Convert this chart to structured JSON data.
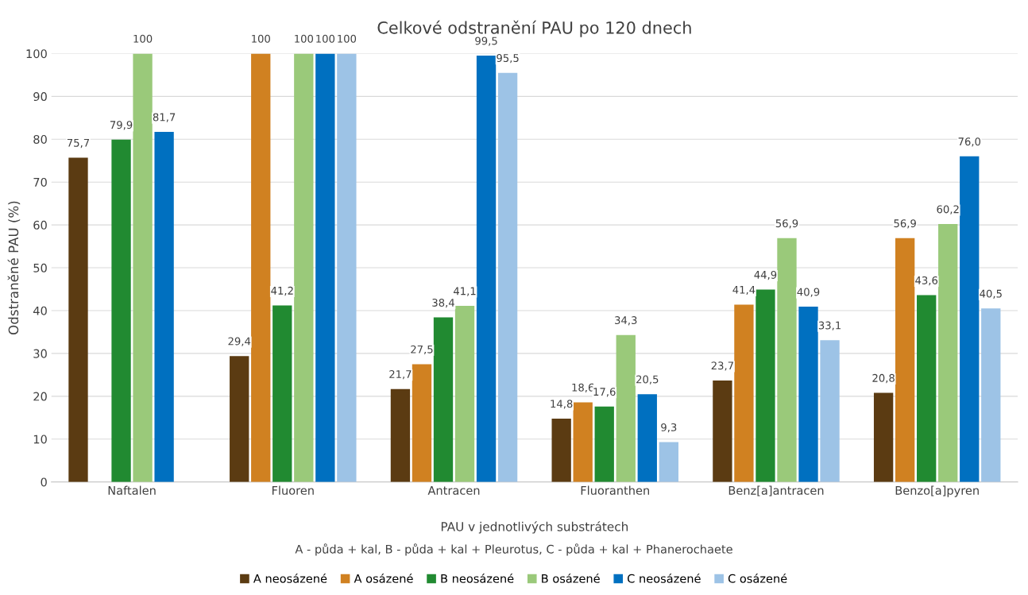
{
  "chart_data": {
    "type": "bar",
    "title": "Celkové odstranění PAU po 120 dnech",
    "xlabel": "PAU v jednotlivých substrátech",
    "ylabel": "Odstraněné PAU (%)",
    "annotations": [
      "A - půda + kal, B - půda + kal + Pleurotus, C - půda + kal + Phanerochaete"
    ],
    "categories": [
      "Naftalen",
      "Fluoren",
      "Antracen",
      "Fluoranthen",
      "Benz[a]antracen",
      "Benzo[a]pyren"
    ],
    "series": [
      {
        "name": "A neosázené",
        "color": "#5b3b12",
        "values": [
          75.7,
          29.4,
          21.7,
          14.8,
          23.7,
          20.8
        ],
        "value_labels": [
          "75,7",
          "29,4",
          "21,7",
          "14,8",
          "23,7",
          "20,8"
        ]
      },
      {
        "name": "A osázené",
        "color": "#d08121",
        "values": [
          null,
          100,
          27.5,
          18.6,
          41.4,
          56.9
        ],
        "value_labels": [
          null,
          "100",
          "27,5",
          "18,6",
          "41,4",
          "56,9"
        ]
      },
      {
        "name": "B neosázené",
        "color": "#218a31",
        "values": [
          79.9,
          41.2,
          38.4,
          17.6,
          44.9,
          43.6
        ],
        "value_labels": [
          "79,9",
          "41,2",
          "38,4",
          "17,6",
          "44,9",
          "43,6"
        ]
      },
      {
        "name": "B osázené",
        "color": "#9ac97a",
        "values": [
          100,
          100,
          41.1,
          34.3,
          56.9,
          60.2
        ],
        "value_labels": [
          "100",
          "100",
          "41,1",
          "34,3",
          "56,9",
          "60,2"
        ]
      },
      {
        "name": "C neosázené",
        "color": "#0070c0",
        "values": [
          81.7,
          100,
          99.5,
          20.5,
          40.9,
          76.0
        ],
        "value_labels": [
          "81,7",
          "100",
          "99,5",
          "20,5",
          "40,9",
          "76,0"
        ]
      },
      {
        "name": "C osázené",
        "color": "#9dc3e6",
        "values": [
          null,
          100,
          95.5,
          9.3,
          33.1,
          40.5
        ],
        "value_labels": [
          null,
          "100",
          "95,5",
          "9,3",
          "33,1",
          "40,5"
        ]
      }
    ],
    "ylim": [
      0,
      100
    ],
    "yticks": [
      0,
      10,
      20,
      30,
      40,
      50,
      60,
      70,
      80,
      90,
      100
    ],
    "grid": "y",
    "legend": "bottom"
  }
}
